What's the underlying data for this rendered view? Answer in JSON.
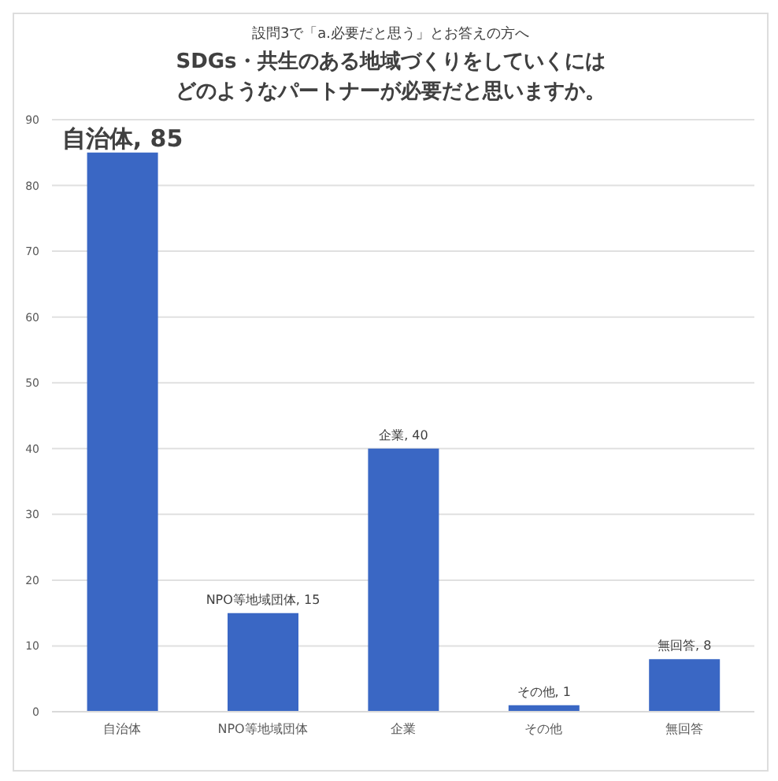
{
  "chart_data": {
    "type": "bar",
    "annotations": [
      "設問3で「a.必要だと思う」とお答えの方へ"
    ],
    "title": "SDGs・共生のある地域づくりをしていくには",
    "subtitle": "どのようなパートナーが必要だと思いますか。",
    "categories": [
      "自治体",
      "NPO等地域団体",
      "企業",
      "その他",
      "無回答"
    ],
    "values": [
      85,
      15,
      40,
      1,
      8
    ],
    "value_labels": [
      "自治体, 85",
      "NPO等地域団体, 15",
      "企業, 40",
      "その他, 1",
      "無回答, 8"
    ],
    "color": "#3a67c4",
    "ylim": [
      0,
      90
    ],
    "yticks": [
      0,
      10,
      20,
      30,
      40,
      50,
      60,
      70,
      80,
      90
    ],
    "grid": "y",
    "legend": false
  }
}
